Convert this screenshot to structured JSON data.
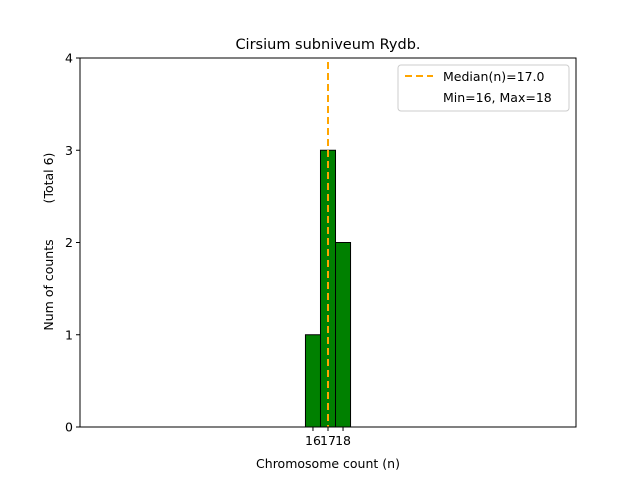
{
  "chart_data": {
    "type": "bar",
    "title": "Cirsium subniveum Rydb.",
    "xlabel": "Chromosome count (n)",
    "ylabel": "Num of counts",
    "ylabel2": "(Total 6)",
    "categories": [
      16,
      17,
      18
    ],
    "values": [
      1,
      3,
      2
    ],
    "xlim": [
      0.5,
      33.5
    ],
    "ylim": [
      0,
      4
    ],
    "yticks": [
      0,
      1,
      2,
      3,
      4
    ],
    "xticks": [
      "16",
      "17",
      "18"
    ],
    "bar_color": "#008000",
    "median": 17.0,
    "median_color": "#FFA500",
    "legend": {
      "placement": "top-right",
      "entries": [
        "Median(n)=17.0",
        "Min=16, Max=18"
      ]
    },
    "grid": false
  }
}
